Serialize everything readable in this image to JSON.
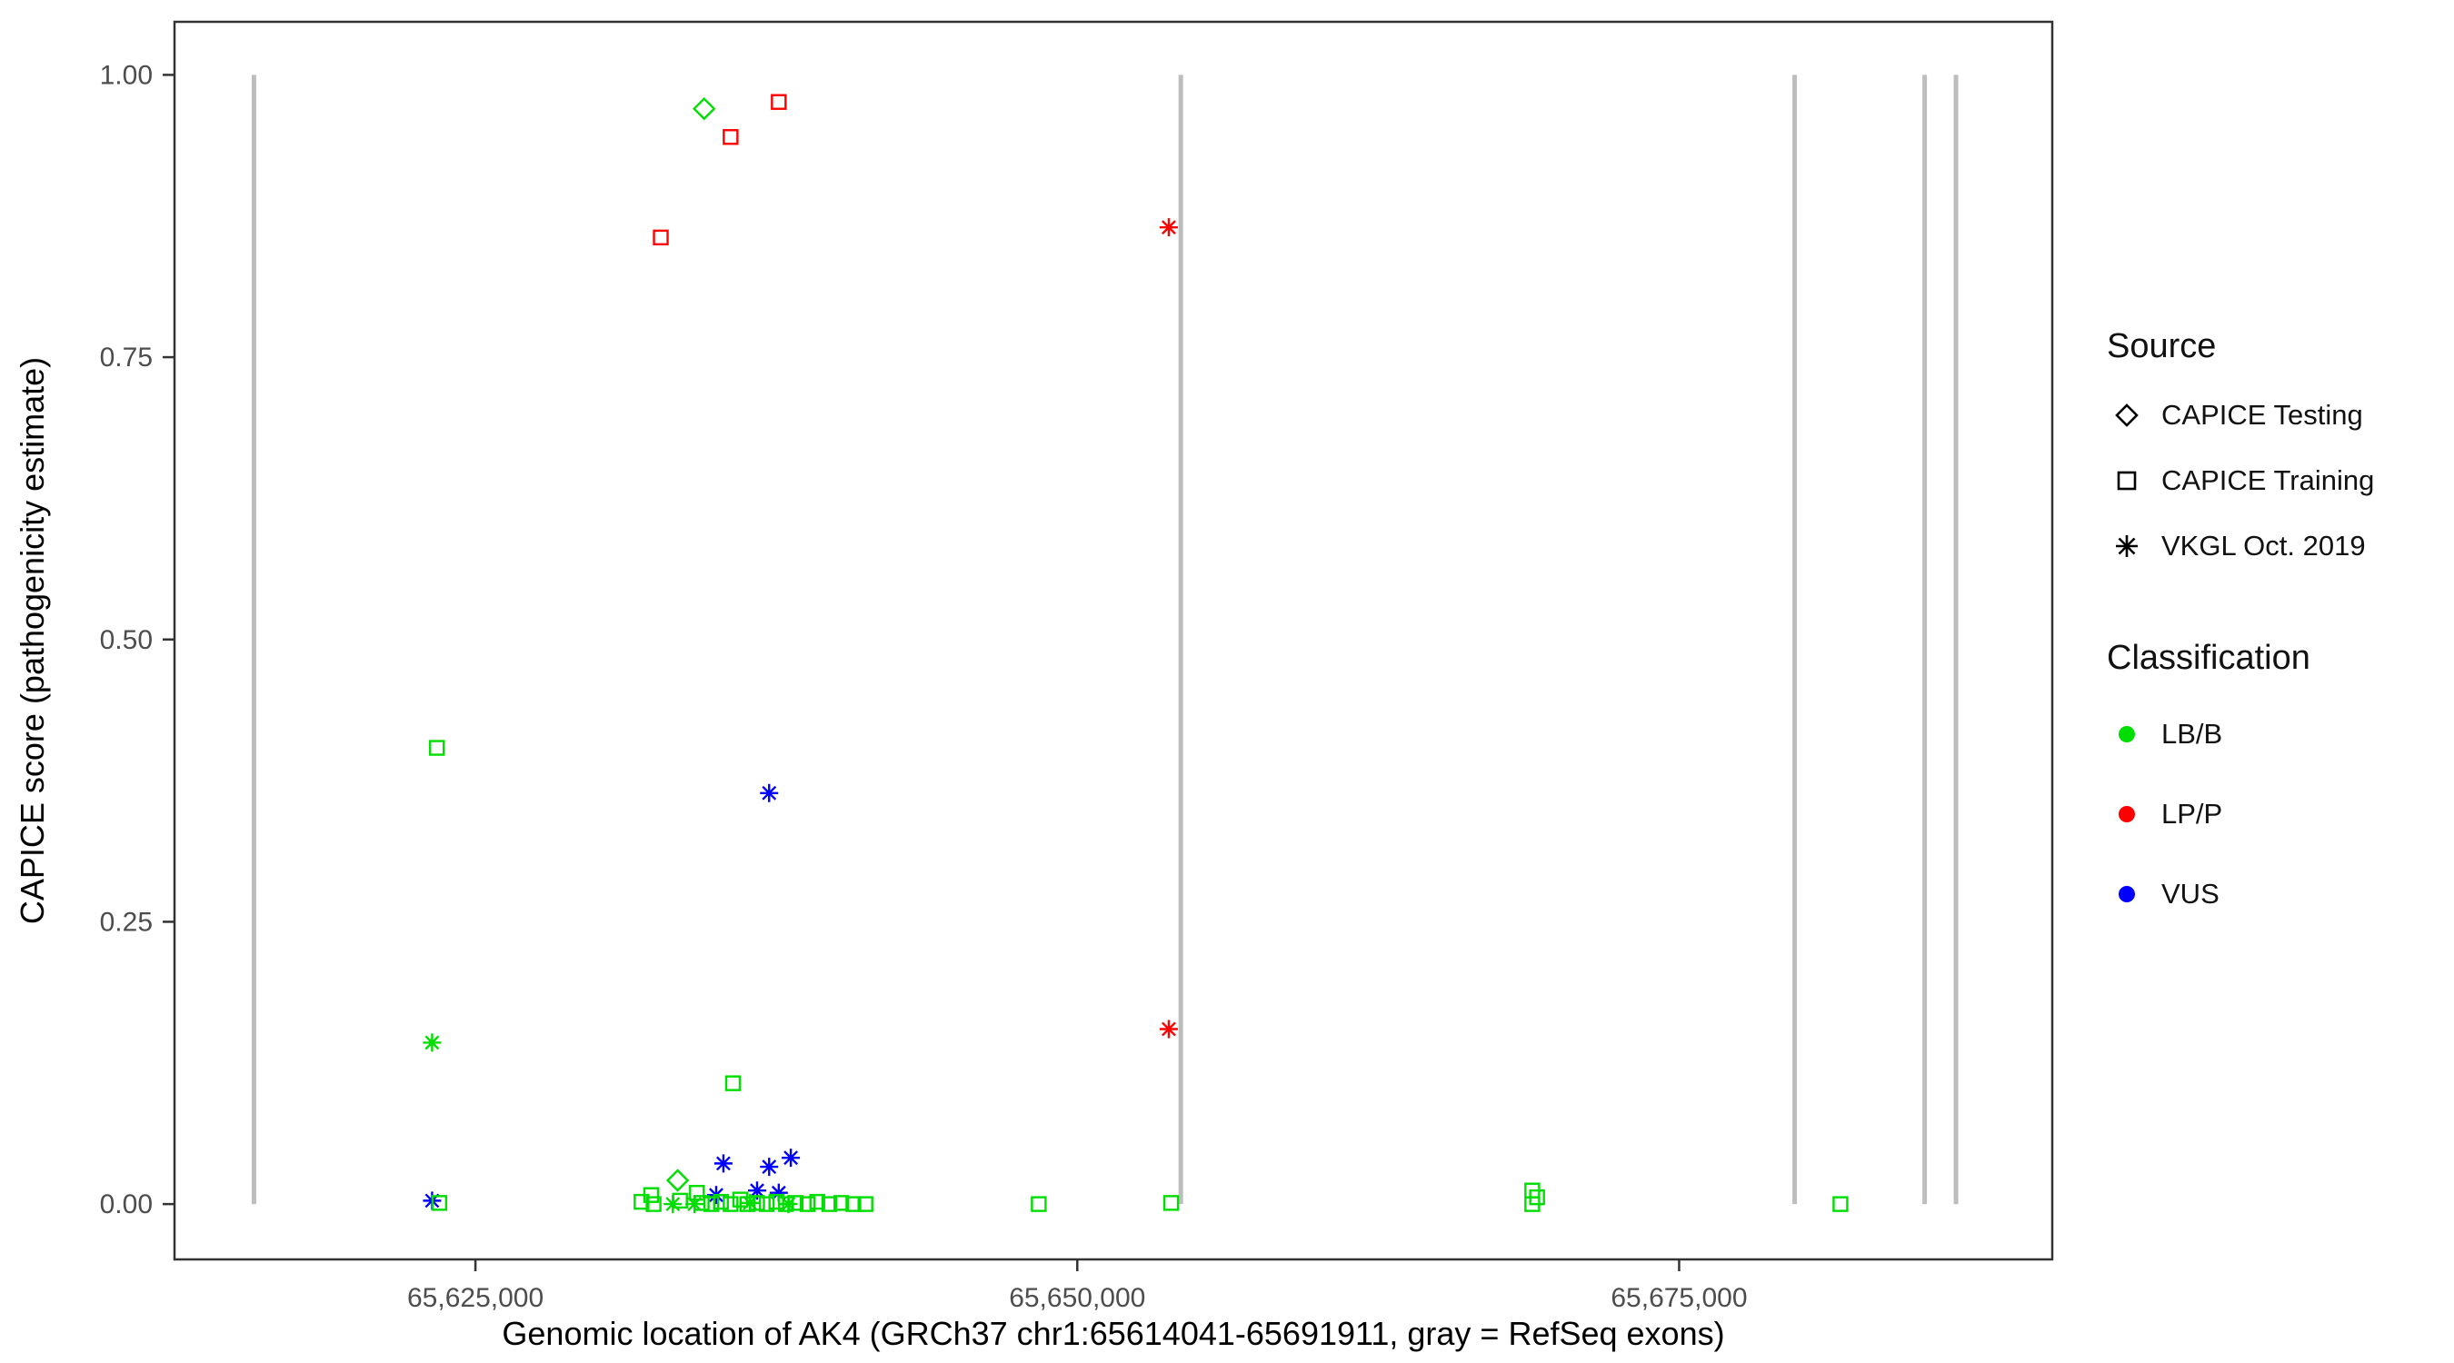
{
  "chart_data": {
    "type": "scatter",
    "title": "",
    "xlabel": "Genomic location of AK4 (GRCh37 chr1:65614041-65691911, gray = RefSeq exons)",
    "ylabel": "CAPICE score (pathogenicity estimate)",
    "xlim": [
      65612500,
      65690500
    ],
    "ylim": [
      -0.049,
      1.047
    ],
    "grid": false,
    "legend_position": "right",
    "xticks": [
      {
        "value": 65625000,
        "label": "65,625,000"
      },
      {
        "value": 65650000,
        "label": "65,650,000"
      },
      {
        "value": 65675000,
        "label": "65,675,000"
      }
    ],
    "yticks": [
      {
        "value": 0.0,
        "label": "0.00"
      },
      {
        "value": 0.25,
        "label": "0.25"
      },
      {
        "value": 0.5,
        "label": "0.50"
      },
      {
        "value": 0.75,
        "label": "0.75"
      },
      {
        "value": 1.0,
        "label": "1.00"
      }
    ],
    "exon_lines_x": [
      65615800,
      65654300,
      65679800,
      65685200,
      65686500
    ],
    "exon_line_color": "#bdbdbd",
    "exon_line_y_range": [
      0.0,
      1.0
    ],
    "class_colors": {
      "LB/B": "#00dd00",
      "LP/P": "#ff0000",
      "VUS": "#0000ff"
    },
    "source_shapes": {
      "CAPICE Testing": "diamond",
      "CAPICE Training": "square",
      "VKGL Oct. 2019": "asterisk"
    },
    "points": [
      {
        "x": 65634500,
        "y": 0.97,
        "source": "CAPICE Testing",
        "cls": "LB/B"
      },
      {
        "x": 65632700,
        "y": 0.856,
        "source": "CAPICE Training",
        "cls": "LP/P"
      },
      {
        "x": 65635600,
        "y": 0.945,
        "source": "CAPICE Training",
        "cls": "LP/P"
      },
      {
        "x": 65637600,
        "y": 0.976,
        "source": "CAPICE Training",
        "cls": "LP/P"
      },
      {
        "x": 65653800,
        "y": 0.865,
        "source": "VKGL Oct. 2019",
        "cls": "LP/P"
      },
      {
        "x": 65653800,
        "y": 0.155,
        "source": "VKGL Oct. 2019",
        "cls": "LP/P"
      },
      {
        "x": 65637200,
        "y": 0.364,
        "source": "VKGL Oct. 2019",
        "cls": "VUS"
      },
      {
        "x": 65623400,
        "y": 0.404,
        "source": "CAPICE Training",
        "cls": "LB/B"
      },
      {
        "x": 65623200,
        "y": 0.143,
        "source": "VKGL Oct. 2019",
        "cls": "LB/B"
      },
      {
        "x": 65635700,
        "y": 0.107,
        "source": "CAPICE Training",
        "cls": "LB/B"
      },
      {
        "x": 65623200,
        "y": 0.003,
        "source": "VKGL Oct. 2019",
        "cls": "VUS"
      },
      {
        "x": 65623500,
        "y": 0.001,
        "source": "CAPICE Training",
        "cls": "LB/B"
      },
      {
        "x": 65635300,
        "y": 0.036,
        "source": "VKGL Oct. 2019",
        "cls": "VUS"
      },
      {
        "x": 65637200,
        "y": 0.033,
        "source": "VKGL Oct. 2019",
        "cls": "VUS"
      },
      {
        "x": 65638100,
        "y": 0.041,
        "source": "VKGL Oct. 2019",
        "cls": "VUS"
      },
      {
        "x": 65636700,
        "y": 0.012,
        "source": "VKGL Oct. 2019",
        "cls": "VUS"
      },
      {
        "x": 65635000,
        "y": 0.008,
        "source": "VKGL Oct. 2019",
        "cls": "VUS"
      },
      {
        "x": 65637600,
        "y": 0.01,
        "source": "VKGL Oct. 2019",
        "cls": "VUS"
      },
      {
        "x": 65633400,
        "y": 0.021,
        "source": "CAPICE Testing",
        "cls": "LB/B"
      },
      {
        "x": 65633200,
        "y": 0.0,
        "source": "VKGL Oct. 2019",
        "cls": "LB/B"
      },
      {
        "x": 65634100,
        "y": 0.0,
        "source": "VKGL Oct. 2019",
        "cls": "LB/B"
      },
      {
        "x": 65636400,
        "y": 0.001,
        "source": "VKGL Oct. 2019",
        "cls": "LB/B"
      },
      {
        "x": 65638000,
        "y": 0.0,
        "source": "VKGL Oct. 2019",
        "cls": "LB/B"
      },
      {
        "x": 65631900,
        "y": 0.002,
        "source": "CAPICE Training",
        "cls": "LB/B"
      },
      {
        "x": 65632300,
        "y": 0.008,
        "source": "CAPICE Training",
        "cls": "LB/B"
      },
      {
        "x": 65632400,
        "y": 0.0,
        "source": "CAPICE Training",
        "cls": "LB/B"
      },
      {
        "x": 65633500,
        "y": 0.003,
        "source": "CAPICE Training",
        "cls": "LB/B"
      },
      {
        "x": 65634200,
        "y": 0.01,
        "source": "CAPICE Training",
        "cls": "LB/B"
      },
      {
        "x": 65634400,
        "y": 0.001,
        "source": "CAPICE Training",
        "cls": "LB/B"
      },
      {
        "x": 65634800,
        "y": 0.0,
        "source": "CAPICE Training",
        "cls": "LB/B"
      },
      {
        "x": 65635200,
        "y": 0.002,
        "source": "CAPICE Training",
        "cls": "LB/B"
      },
      {
        "x": 65635600,
        "y": 0.0,
        "source": "CAPICE Training",
        "cls": "LB/B"
      },
      {
        "x": 65636000,
        "y": 0.004,
        "source": "CAPICE Training",
        "cls": "LB/B"
      },
      {
        "x": 65636300,
        "y": 0.0,
        "source": "CAPICE Training",
        "cls": "LB/B"
      },
      {
        "x": 65636700,
        "y": 0.001,
        "source": "CAPICE Training",
        "cls": "LB/B"
      },
      {
        "x": 65637100,
        "y": 0.0,
        "source": "CAPICE Training",
        "cls": "LB/B"
      },
      {
        "x": 65637500,
        "y": 0.002,
        "source": "CAPICE Training",
        "cls": "LB/B"
      },
      {
        "x": 65637900,
        "y": 0.0,
        "source": "CAPICE Training",
        "cls": "LB/B"
      },
      {
        "x": 65638300,
        "y": 0.001,
        "source": "CAPICE Training",
        "cls": "LB/B"
      },
      {
        "x": 65638800,
        "y": 0.0,
        "source": "CAPICE Training",
        "cls": "LB/B"
      },
      {
        "x": 65639200,
        "y": 0.002,
        "source": "CAPICE Training",
        "cls": "LB/B"
      },
      {
        "x": 65639700,
        "y": 0.0,
        "source": "CAPICE Training",
        "cls": "LB/B"
      },
      {
        "x": 65640200,
        "y": 0.001,
        "source": "CAPICE Training",
        "cls": "LB/B"
      },
      {
        "x": 65640700,
        "y": 0.0,
        "source": "CAPICE Training",
        "cls": "LB/B"
      },
      {
        "x": 65641200,
        "y": 0.0,
        "source": "CAPICE Training",
        "cls": "LB/B"
      },
      {
        "x": 65648400,
        "y": 0.0,
        "source": "CAPICE Training",
        "cls": "LB/B"
      },
      {
        "x": 65653900,
        "y": 0.001,
        "source": "CAPICE Training",
        "cls": "LB/B"
      },
      {
        "x": 65668900,
        "y": 0.012,
        "source": "CAPICE Training",
        "cls": "LB/B"
      },
      {
        "x": 65668900,
        "y": 0.0,
        "source": "CAPICE Training",
        "cls": "LB/B"
      },
      {
        "x": 65669100,
        "y": 0.006,
        "source": "CAPICE Training",
        "cls": "LB/B"
      },
      {
        "x": 65681700,
        "y": 0.0,
        "source": "CAPICE Training",
        "cls": "LB/B"
      }
    ]
  },
  "legend": {
    "source": {
      "title": "Source",
      "items": [
        {
          "label": "CAPICE Testing",
          "shape": "diamond"
        },
        {
          "label": "CAPICE Training",
          "shape": "square"
        },
        {
          "label": "VKGL Oct. 2019",
          "shape": "asterisk"
        }
      ]
    },
    "classification": {
      "title": "Classification",
      "items": [
        {
          "label": "LB/B",
          "color": "#00dd00"
        },
        {
          "label": "LP/P",
          "color": "#ff0000"
        },
        {
          "label": "VUS",
          "color": "#0000ff"
        }
      ]
    }
  }
}
